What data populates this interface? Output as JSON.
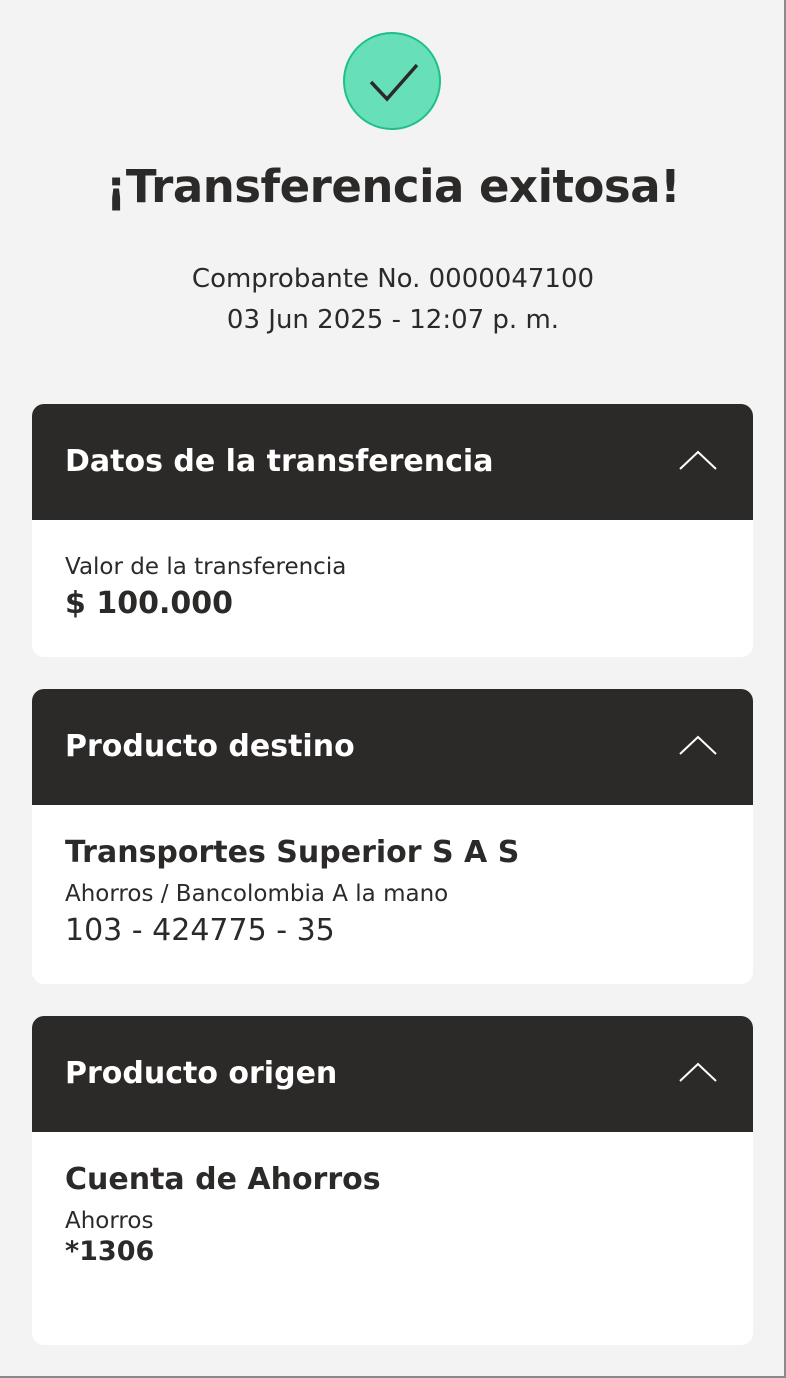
{
  "status": {
    "icon": "check-icon",
    "title": "¡Transferencia exitosa!",
    "receipt": "Comprobante No. 0000047100",
    "datetime": "03 Jun 2025 - 12:07 p. m."
  },
  "colors": {
    "success": "#67dfb9",
    "header_bg": "#2c2a29",
    "page_bg": "#f3f3f3"
  },
  "sections": [
    {
      "title": "Datos de la transferencia",
      "label": "Valor de la transferencia",
      "value": "$ 100.000"
    },
    {
      "title": "Producto destino",
      "name": "Transportes Superior S A S",
      "type": "Ahorros / Bancolombia A la mano",
      "number": "103 - 424775 - 35"
    },
    {
      "title": "Producto origen",
      "name": "Cuenta de Ahorros",
      "type": "Ahorros",
      "number": "*1306"
    }
  ]
}
